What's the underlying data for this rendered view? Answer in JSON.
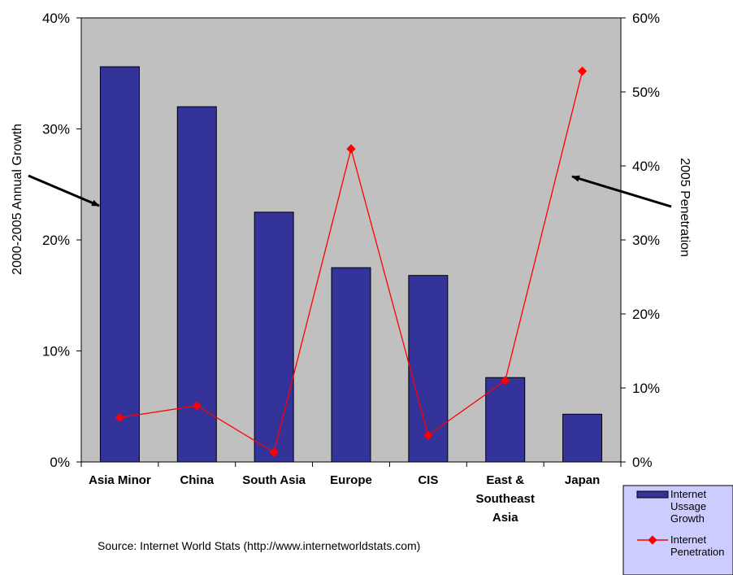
{
  "chart_data": {
    "type": "bar",
    "categories": [
      "Asia Minor",
      "China",
      "South Asia",
      "Europe",
      "CIS",
      "East & Southeast Asia",
      "Japan"
    ],
    "category_lines": [
      [
        "Asia Minor"
      ],
      [
        "China"
      ],
      [
        "South Asia"
      ],
      [
        "Europe"
      ],
      [
        "CIS"
      ],
      [
        "East &",
        "Southeast",
        "Asia"
      ],
      [
        "Japan"
      ]
    ],
    "series": [
      {
        "name": "Internet Ussage Growth",
        "name_lines": [
          "Internet",
          "Ussage",
          "Growth"
        ],
        "type": "bar",
        "axis": "left",
        "color": "#333399",
        "values": [
          35.6,
          32.0,
          22.5,
          17.5,
          16.8,
          7.6,
          4.3
        ]
      },
      {
        "name": "Internet Penetration",
        "name_lines": [
          "Internet",
          "Penetration"
        ],
        "type": "line",
        "axis": "right",
        "color": "#ff0000",
        "values": [
          6.0,
          7.6,
          1.3,
          42.3,
          3.6,
          11.0,
          52.8
        ]
      }
    ],
    "ylabel": "2000-2005 Annual Growth",
    "y2label": "2005 Penetration",
    "ylim": [
      0,
      40
    ],
    "y2lim": [
      0,
      60
    ],
    "yticks": [
      "0%",
      "10%",
      "20%",
      "30%",
      "40%"
    ],
    "y2ticks": [
      "0%",
      "10%",
      "20%",
      "30%",
      "40%",
      "50%",
      "60%"
    ],
    "plot_background": "#c0c0c0",
    "legend_background": "#ccccff",
    "legend_position": "bottom-right",
    "grid": false,
    "annotations": [
      "left arrow pointing to bars",
      "right arrow pointing to line"
    ]
  },
  "source_note": "Source: Internet World Stats (http://www.internetworldstats.com)"
}
